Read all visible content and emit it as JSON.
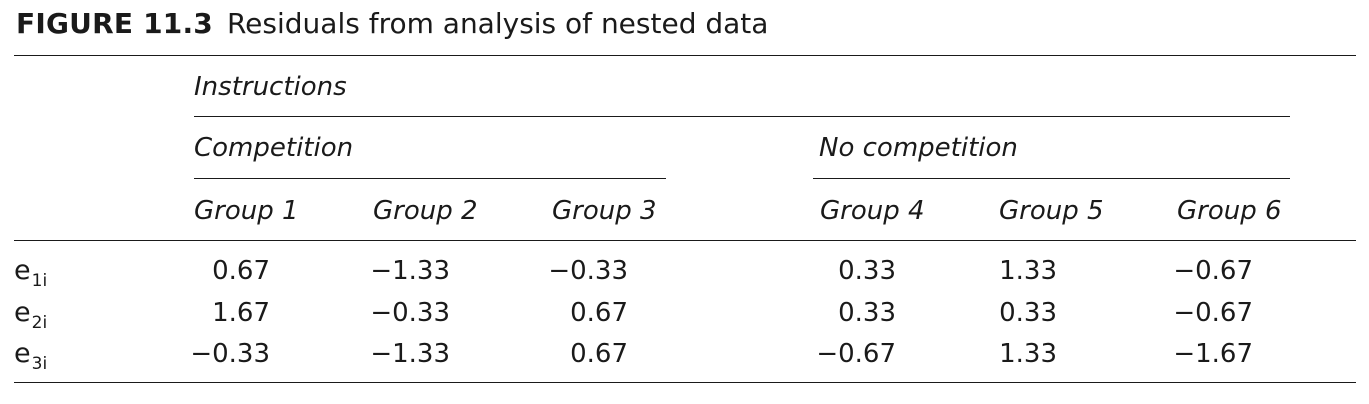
{
  "figure": {
    "label": "FIGURE 11.3",
    "title": "Residuals from analysis of nested data"
  },
  "table": {
    "spanner": "Instructions",
    "conditions": [
      "Competition",
      "No competition"
    ],
    "groups": [
      "Group 1",
      "Group 2",
      "Group 3",
      "Group 4",
      "Group 5",
      "Group 6"
    ],
    "rows": [
      {
        "label": "e",
        "sub": "1i",
        "values": [
          "0.67",
          "−1.33",
          "−0.33",
          "0.33",
          "1.33",
          "−0.67"
        ]
      },
      {
        "label": "e",
        "sub": "2i",
        "values": [
          "1.67",
          "−0.33",
          "0.67",
          "0.33",
          "0.33",
          "−0.67"
        ]
      },
      {
        "label": "e",
        "sub": "3i",
        "values": [
          "−0.33",
          "−1.33",
          "0.67",
          "−0.67",
          "1.33",
          "−1.67"
        ]
      }
    ]
  }
}
